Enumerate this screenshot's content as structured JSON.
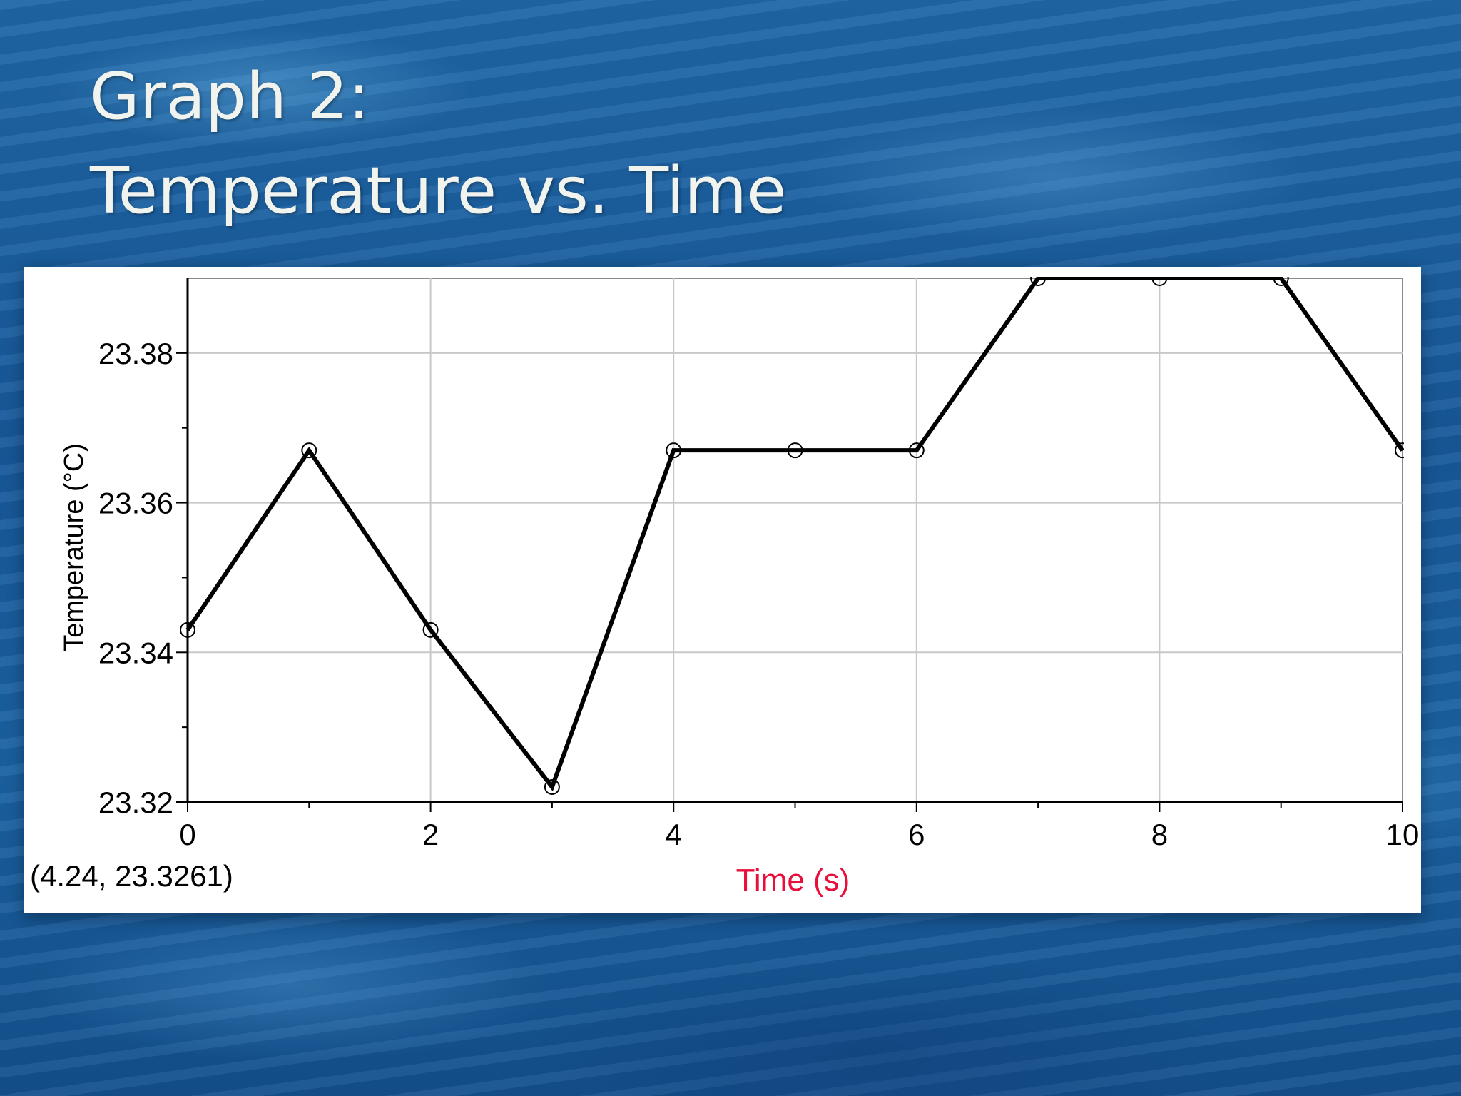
{
  "slide": {
    "title_line1": "Graph 2:",
    "title_line2": "Temperature vs. Time"
  },
  "colors": {
    "title_text": "#f1f3ef",
    "xlabel": "#e8103a",
    "series_line": "#000000",
    "grid": "#c8c8c8"
  },
  "chart_data": {
    "type": "line",
    "title": "",
    "xlabel": "Time (s)",
    "ylabel": "Temperature (°C)",
    "xlim": [
      0,
      10
    ],
    "ylim": [
      23.32,
      23.39
    ],
    "x_ticks": [
      "0",
      "2",
      "4",
      "6",
      "8",
      "10"
    ],
    "y_ticks": [
      "23.32",
      "23.34",
      "23.36",
      "23.38"
    ],
    "grid": true,
    "markers": "open-circle",
    "cursor_readout": "(4.24, 23.3261)",
    "series": [
      {
        "x": [
          0,
          1,
          2,
          3,
          4,
          5,
          6,
          7,
          8,
          9,
          10
        ],
        "y": [
          23.343,
          23.367,
          23.343,
          23.322,
          23.367,
          23.367,
          23.367,
          23.39,
          23.39,
          23.39,
          23.367
        ]
      }
    ]
  }
}
